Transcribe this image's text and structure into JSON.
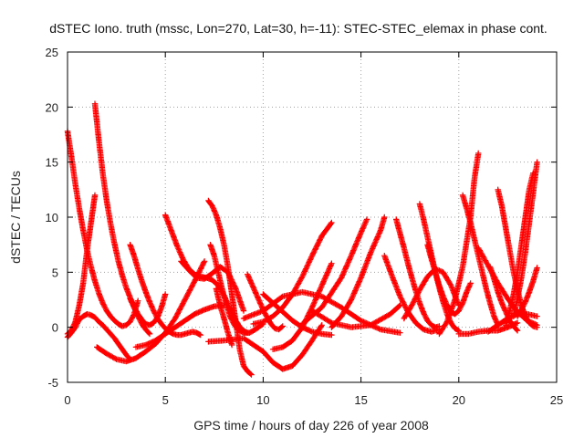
{
  "chart_data": {
    "type": "scatter",
    "title": "dSTEC Iono. truth (mssc, Lon=270, Lat=30, h=-11): STEC-STEC_elemax in phase cont.",
    "xlabel": "GPS time / hours of day 226 of year 2008",
    "ylabel": "dSTEC  / TECUs",
    "xlim": [
      0,
      25
    ],
    "ylim": [
      -5,
      25
    ],
    "x_ticks": [
      0,
      5,
      10,
      15,
      20,
      25
    ],
    "y_ticks": [
      -5,
      0,
      5,
      10,
      15,
      20,
      25
    ],
    "x_tick_labels": [
      "0",
      "5",
      "10",
      "15",
      "20",
      "25"
    ],
    "y_tick_labels": [
      "-5",
      "0",
      "5",
      "10",
      "15",
      "20",
      "25"
    ],
    "grid": true,
    "marker": "+",
    "color": "#ff0000",
    "series": [
      {
        "x": [
          0.0,
          0.2,
          0.4,
          0.6,
          0.8,
          1.0,
          1.2,
          1.4,
          1.6,
          1.8,
          2.0,
          2.2,
          2.4,
          2.6,
          2.8,
          3.0,
          3.2,
          3.4,
          3.6
        ],
        "y": [
          17.8,
          15.5,
          13.0,
          10.8,
          8.8,
          7.0,
          5.5,
          4.2,
          3.1,
          2.2,
          1.5,
          1.0,
          0.6,
          0.3,
          0.1,
          0.2,
          0.5,
          1.2,
          2.4
        ]
      },
      {
        "x": [
          0.0,
          0.2,
          0.4,
          0.6,
          0.8,
          1.0,
          1.2,
          1.4,
          1.6,
          1.8,
          2.0,
          2.2,
          2.4,
          2.6,
          2.8,
          3.0,
          3.2
        ],
        "y": [
          -0.9,
          -0.5,
          0.0,
          0.7,
          1.0,
          1.2,
          1.1,
          0.9,
          0.5,
          0.2,
          -0.2,
          -0.6,
          -1.0,
          -1.5,
          -2.0,
          -2.5,
          -2.9
        ]
      },
      {
        "x": [
          0.0,
          0.2,
          0.4,
          0.6,
          0.8,
          1.0,
          1.2,
          1.4
        ],
        "y": [
          -0.6,
          -0.3,
          0.5,
          2.0,
          4.0,
          7.0,
          9.5,
          12.0
        ]
      },
      {
        "x": [
          1.4,
          1.6,
          1.8,
          2.0,
          2.2,
          2.4,
          2.6,
          2.8,
          3.0,
          3.2,
          3.4,
          3.6,
          3.8,
          4.0,
          4.2,
          4.4,
          4.6,
          4.8,
          5.0
        ],
        "y": [
          20.3,
          17.0,
          14.0,
          11.5,
          9.4,
          7.6,
          6.0,
          4.7,
          3.6,
          2.7,
          1.9,
          1.2,
          0.7,
          0.3,
          0.2,
          0.4,
          0.9,
          1.8,
          3.0
        ]
      },
      {
        "x": [
          3.2,
          3.4,
          3.6,
          3.8,
          4.0,
          4.2,
          4.4,
          4.6,
          4.8,
          5.0,
          5.2,
          5.4,
          5.6,
          5.8,
          6.0,
          6.2,
          6.4,
          6.6,
          6.8
        ],
        "y": [
          7.5,
          6.5,
          5.3,
          4.2,
          3.2,
          2.3,
          1.5,
          0.8,
          0.3,
          -0.1,
          -0.4,
          -0.6,
          -0.7,
          -0.7,
          -0.6,
          -0.5,
          -0.4,
          -0.5,
          -0.7
        ]
      },
      {
        "x": [
          3.2,
          3.4,
          3.6,
          3.8,
          4.0,
          4.2
        ],
        "y": [
          2.6,
          1.8,
          1.0,
          0.3,
          -0.2,
          -0.6
        ]
      },
      {
        "x": [
          1.5,
          2.0,
          2.5,
          3.0,
          3.5,
          4.0,
          4.5,
          5.0,
          5.5,
          6.0,
          6.5,
          7.0
        ],
        "y": [
          -1.8,
          -2.4,
          -2.9,
          -3.1,
          -2.8,
          -2.2,
          -1.5,
          -0.5,
          0.8,
          2.5,
          4.2,
          6.0
        ]
      },
      {
        "x": [
          3.5,
          4.0,
          4.5,
          5.0,
          5.5,
          6.0,
          6.5,
          7.0,
          7.5,
          8.0
        ],
        "y": [
          -1.8,
          -1.6,
          -1.2,
          -0.6,
          0.0,
          0.6,
          1.2,
          1.6,
          1.9,
          2.0
        ]
      },
      {
        "x": [
          5.0,
          5.3,
          5.6,
          5.9,
          6.2,
          6.5,
          6.8,
          7.1,
          7.4,
          7.7,
          8.0,
          8.3,
          8.6,
          8.9,
          9.2
        ],
        "y": [
          10.2,
          8.8,
          7.4,
          6.2,
          5.3,
          4.8,
          4.6,
          4.5,
          4.3,
          3.8,
          2.9,
          1.7,
          0.6,
          -0.2,
          -0.5
        ]
      },
      {
        "x": [
          5.8,
          6.2,
          6.6,
          7.0,
          7.4,
          7.8,
          8.2,
          8.6,
          9.0
        ],
        "y": [
          6.0,
          5.2,
          4.5,
          4.4,
          4.9,
          5.5,
          5.0,
          3.5,
          1.5
        ]
      },
      {
        "x": [
          7.2,
          7.4,
          7.6,
          7.8,
          8.0,
          8.2,
          8.4,
          8.6,
          8.8,
          9.0,
          9.2,
          9.4
        ],
        "y": [
          11.5,
          11.0,
          10.2,
          9.0,
          7.5,
          5.5,
          3.0,
          0.5,
          -2.0,
          -3.5,
          -4.0,
          -4.3
        ]
      },
      {
        "x": [
          7.3,
          7.5,
          7.7,
          7.9,
          8.1,
          8.3,
          8.5,
          8.7,
          9.0,
          9.3,
          9.6,
          10.0
        ],
        "y": [
          7.5,
          6.5,
          5.0,
          3.5,
          2.2,
          1.0,
          0.3,
          -0.2,
          -0.5,
          -0.5,
          -0.2,
          0.3
        ]
      },
      {
        "x": [
          7.6,
          7.8,
          8.0,
          8.2,
          8.4
        ],
        "y": [
          3.5,
          2.0,
          0.8,
          -0.5,
          -1.6
        ]
      },
      {
        "x": [
          9.2,
          9.4,
          9.6,
          9.8,
          10.0,
          10.2,
          10.4,
          10.6,
          10.8,
          11.0
        ],
        "y": [
          4.8,
          4.0,
          3.2,
          2.4,
          1.6,
          0.9,
          0.3,
          -0.1,
          -0.2,
          0.1
        ]
      },
      {
        "x": [
          10.0,
          10.5,
          11.0,
          11.5,
          12.0,
          12.5,
          13.0,
          13.5
        ],
        "y": [
          3.0,
          2.2,
          1.4,
          0.6,
          0.0,
          -0.4,
          -0.6,
          -0.7
        ]
      },
      {
        "x": [
          7.2,
          8.0,
          9.0,
          10.0,
          10.5,
          11.0,
          11.5,
          12.0,
          12.5,
          13.0
        ],
        "y": [
          -1.3,
          -1.2,
          -1.0,
          -2.2,
          -3.2,
          -3.8,
          -3.5,
          -2.5,
          -1.2,
          0.2
        ]
      },
      {
        "x": [
          9.0,
          10.0,
          11.0,
          12.0,
          13.0,
          14.0,
          15.0,
          16.0,
          17.0
        ],
        "y": [
          0.8,
          1.5,
          2.8,
          3.2,
          2.8,
          1.8,
          0.6,
          -0.2,
          -0.5
        ]
      },
      {
        "x": [
          9.5,
          10.0,
          10.5,
          11.0,
          11.5,
          12.0,
          12.5,
          13.0,
          13.5
        ],
        "y": [
          0.3,
          0.5,
          1.0,
          1.8,
          3.0,
          4.6,
          6.5,
          8.3,
          9.5
        ]
      },
      {
        "x": [
          10.5,
          11.0,
          11.5,
          12.0,
          12.5,
          13.0,
          13.5
        ],
        "y": [
          -2.0,
          -1.8,
          -1.2,
          0.0,
          1.8,
          3.8,
          5.8
        ]
      },
      {
        "x": [
          12.0,
          13.0,
          14.0,
          14.5,
          15.0,
          15.3
        ],
        "y": [
          0.3,
          1.8,
          4.5,
          6.5,
          8.6,
          9.8
        ]
      },
      {
        "x": [
          13.5,
          14.0,
          14.5,
          15.0,
          15.5,
          16.0,
          16.2
        ],
        "y": [
          0.0,
          1.0,
          2.5,
          4.5,
          6.8,
          8.8,
          10.0
        ]
      },
      {
        "x": [
          12.5,
          13.5,
          14.5,
          15.5,
          16.5,
          17.0
        ],
        "y": [
          1.5,
          0.4,
          0.0,
          0.2,
          1.2,
          2.0
        ]
      },
      {
        "x": [
          16.2,
          16.6,
          17.0,
          17.4,
          17.8,
          18.2,
          18.6,
          19.0
        ],
        "y": [
          6.5,
          4.6,
          2.8,
          1.4,
          0.4,
          -0.2,
          -0.4,
          -0.2
        ]
      },
      {
        "x": [
          16.8,
          17.0,
          17.2,
          17.4,
          17.6,
          17.8,
          18.0,
          18.2,
          18.4,
          18.6,
          18.8,
          19.0
        ],
        "y": [
          9.8,
          8.5,
          7.2,
          5.8,
          4.5,
          3.3,
          2.2,
          1.3,
          0.6,
          0.2,
          0.0,
          0.1
        ]
      },
      {
        "x": [
          17.2,
          17.6,
          18.0,
          18.4,
          18.8,
          19.2,
          19.6,
          20.0
        ],
        "y": [
          0.8,
          2.0,
          3.4,
          4.6,
          5.3,
          5.0,
          3.8,
          2.0
        ]
      },
      {
        "x": [
          18.0,
          18.2,
          18.4,
          18.6,
          18.8,
          19.0,
          19.2,
          19.4,
          19.6,
          19.8,
          20.0
        ],
        "y": [
          11.2,
          9.8,
          8.2,
          6.6,
          5.0,
          3.6,
          2.3,
          1.2,
          0.4,
          -0.1,
          -0.3
        ]
      },
      {
        "x": [
          18.4,
          18.6,
          18.8,
          19.0,
          19.2,
          19.4,
          19.6,
          19.8,
          20.0,
          20.2,
          20.4,
          20.6
        ],
        "y": [
          7.5,
          6.2,
          5.0,
          3.8,
          2.8,
          2.0,
          1.4,
          1.2,
          1.5,
          2.2,
          3.2,
          4.0
        ]
      },
      {
        "x": [
          19.0,
          19.4,
          19.8,
          20.2,
          20.6,
          20.8,
          21.0
        ],
        "y": [
          -0.6,
          0.5,
          2.5,
          5.5,
          10.0,
          13.5,
          15.8
        ]
      },
      {
        "x": [
          20.2,
          20.4,
          20.6,
          20.8,
          21.0,
          21.2,
          21.4,
          21.6,
          21.8,
          22.0
        ],
        "y": [
          12.0,
          10.8,
          9.5,
          8.0,
          6.5,
          5.0,
          3.5,
          2.2,
          1.0,
          0.2
        ]
      },
      {
        "x": [
          20.0,
          20.5,
          21.0,
          21.5,
          22.0,
          22.5,
          23.0
        ],
        "y": [
          -0.6,
          -0.6,
          -0.4,
          -0.3,
          -0.3,
          0.0,
          0.4
        ]
      },
      {
        "x": [
          21.0,
          21.5,
          22.0,
          22.5,
          23.0,
          23.5,
          24.0
        ],
        "y": [
          7.2,
          5.6,
          4.0,
          2.6,
          1.4,
          0.6,
          0.2
        ]
      },
      {
        "x": [
          21.6,
          21.8,
          22.0,
          22.2,
          22.4,
          22.6,
          22.8,
          23.0
        ],
        "y": [
          5.5,
          4.4,
          3.2,
          2.2,
          1.4,
          0.6,
          0.1,
          -0.3
        ]
      },
      {
        "x": [
          22.0,
          22.2,
          22.4,
          22.6,
          22.8,
          23.0,
          23.2,
          23.4,
          23.6,
          23.8,
          24.0
        ],
        "y": [
          12.5,
          11.0,
          9.0,
          7.0,
          5.0,
          3.4,
          2.0,
          1.0,
          0.4,
          0.1,
          0.0
        ]
      },
      {
        "x": [
          22.4,
          22.6,
          22.8,
          23.0,
          23.2,
          23.4,
          23.6,
          23.8
        ],
        "y": [
          0.2,
          1.5,
          3.0,
          5.0,
          7.5,
          10.0,
          12.5,
          14.0
        ]
      },
      {
        "x": [
          22.8,
          23.0,
          23.2,
          23.4,
          23.6,
          23.8,
          24.0
        ],
        "y": [
          1.0,
          2.6,
          4.5,
          6.8,
          9.5,
          12.2,
          15.0
        ]
      },
      {
        "x": [
          21.5,
          22.0,
          22.5,
          23.0,
          23.5,
          24.0
        ],
        "y": [
          -0.4,
          0.2,
          0.8,
          1.2,
          1.2,
          1.0
        ]
      },
      {
        "x": [
          23.0,
          23.2,
          23.4,
          23.6,
          23.8,
          24.0
        ],
        "y": [
          1.0,
          1.6,
          2.3,
          3.2,
          4.2,
          5.4
        ]
      }
    ]
  }
}
